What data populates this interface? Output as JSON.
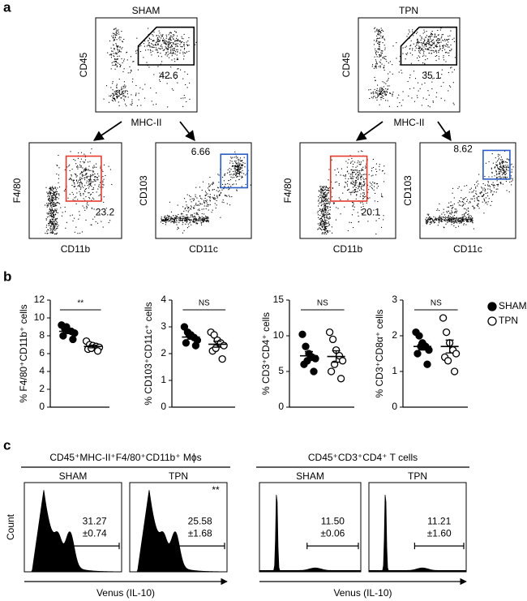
{
  "panel_a": {
    "label": "a",
    "groups": [
      {
        "title": "SHAM",
        "parent": {
          "y_label": "CD45",
          "x_label": "MHC-II",
          "gate": "42.6"
        },
        "children": [
          {
            "y_label": "F4/80",
            "x_label": "CD11b",
            "gate": "23.2"
          },
          {
            "y_label": "CD103",
            "x_label": "CD11c",
            "gate": "6.66"
          }
        ]
      },
      {
        "title": "TPN",
        "parent": {
          "y_label": "CD45",
          "x_label": "MHC-II",
          "gate": "35.1"
        },
        "children": [
          {
            "y_label": "F4/80",
            "x_label": "CD11b",
            "gate": "20.1"
          },
          {
            "y_label": "CD103",
            "x_label": "CD11c",
            "gate": "8.62"
          }
        ]
      }
    ]
  },
  "panel_b": {
    "label": "b"
  },
  "chart_data": [
    {
      "type": "dot",
      "y_label": "% F4/80⁺CD11b⁺ cells",
      "significance": "**",
      "ylim": [
        0,
        12
      ],
      "yticks": [
        0,
        2,
        4,
        6,
        8,
        10,
        12
      ],
      "series": [
        {
          "name": "SHAM",
          "color": "#000000",
          "marker": "filled",
          "values": [
            9.2,
            8.8,
            8.6,
            8.5,
            8.3,
            8.0,
            7.6,
            9.0
          ],
          "mean": 8.5,
          "sem": 0.2
        },
        {
          "name": "TPN",
          "color": "#000000",
          "marker": "open",
          "values": [
            7.4,
            7.0,
            6.9,
            6.8,
            6.7,
            6.5,
            6.3,
            6.6
          ],
          "mean": 6.8,
          "sem": 0.15
        }
      ]
    },
    {
      "type": "dot",
      "y_label": "% CD103⁺CD11c⁺ cells",
      "significance": "NS",
      "ylim": [
        0,
        4
      ],
      "yticks": [
        0,
        1,
        2,
        3,
        4
      ],
      "series": [
        {
          "name": "SHAM",
          "color": "#000000",
          "marker": "filled",
          "values": [
            3.0,
            2.8,
            2.7,
            2.6,
            2.5,
            2.4,
            2.3,
            2.7
          ],
          "mean": 2.62,
          "sem": 0.08
        },
        {
          "name": "TPN",
          "color": "#000000",
          "marker": "open",
          "values": [
            2.8,
            2.7,
            2.5,
            2.4,
            2.3,
            2.1,
            1.8,
            2.2
          ],
          "mean": 2.35,
          "sem": 0.11
        }
      ]
    },
    {
      "type": "dot",
      "y_label": "% CD3⁺CD4⁺ cells",
      "significance": "NS",
      "ylim": [
        0,
        15
      ],
      "yticks": [
        0,
        5,
        10,
        15
      ],
      "series": [
        {
          "name": "SHAM",
          "color": "#000000",
          "marker": "filled",
          "values": [
            10.2,
            8.5,
            7.5,
            7.0,
            6.8,
            6.0,
            5.0,
            6.5
          ],
          "mean": 7.2,
          "sem": 0.6
        },
        {
          "name": "TPN",
          "color": "#000000",
          "marker": "open",
          "values": [
            10.5,
            9.5,
            8.0,
            7.2,
            6.5,
            5.0,
            4.0,
            6.0
          ],
          "mean": 7.1,
          "sem": 0.8
        }
      ]
    },
    {
      "type": "dot",
      "y_label": "% CD3⁺CD8α⁺ cells",
      "significance": "NS",
      "ylim": [
        0,
        3
      ],
      "yticks": [
        0,
        1,
        2,
        3
      ],
      "legend": "right",
      "series": [
        {
          "name": "SHAM",
          "color": "#000000",
          "marker": "filled",
          "values": [
            2.1,
            2.0,
            1.8,
            1.7,
            1.6,
            1.5,
            1.2,
            1.7
          ],
          "mean": 1.7,
          "sem": 0.1
        },
        {
          "name": "TPN",
          "color": "#000000",
          "marker": "open",
          "values": [
            2.5,
            2.1,
            1.8,
            1.6,
            1.5,
            1.4,
            1.0,
            1.3
          ],
          "mean": 1.7,
          "sem": 0.18
        }
      ]
    }
  ],
  "panel_c": {
    "label": "c",
    "y_label": "Count",
    "groups": [
      {
        "title": "CD45⁺MHC-II⁺F4/80⁺CD11b⁺ Mϕs",
        "x_label": "Venus (IL-10)",
        "samples": [
          {
            "name": "SHAM",
            "mean": "31.27",
            "sem": "±0.74"
          },
          {
            "name": "TPN",
            "mean": "25.58",
            "sem": "±1.68",
            "significance": "**"
          }
        ]
      },
      {
        "title": "CD45⁺CD3⁺CD4⁺ T cells",
        "x_label": "Venus (IL-10)",
        "samples": [
          {
            "name": "SHAM",
            "mean": "11.50",
            "sem": "±0.06"
          },
          {
            "name": "TPN",
            "mean": "11.21",
            "sem": "±1.60"
          }
        ]
      }
    ]
  }
}
